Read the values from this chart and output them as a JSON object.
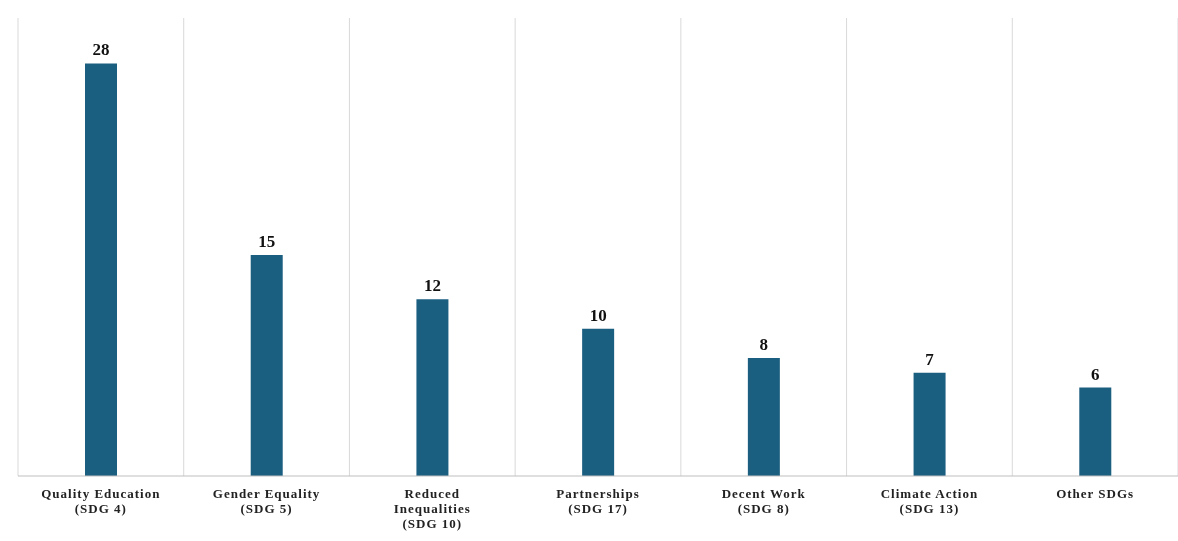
{
  "chart_data": {
    "type": "bar",
    "categories": [
      "Quality Education (SDG 4)",
      "Gender Equality (SDG 5)",
      "Reduced Inequalities (SDG 10)",
      "Partnerships (SDG 17)",
      "Decent Work (SDG 8)",
      "Climate Action (SDG 13)",
      "Other SDGs"
    ],
    "values": [
      28,
      15,
      12,
      10,
      8,
      7,
      6
    ],
    "color": "#1a5e80",
    "data_labels": true,
    "grid": "x"
  }
}
